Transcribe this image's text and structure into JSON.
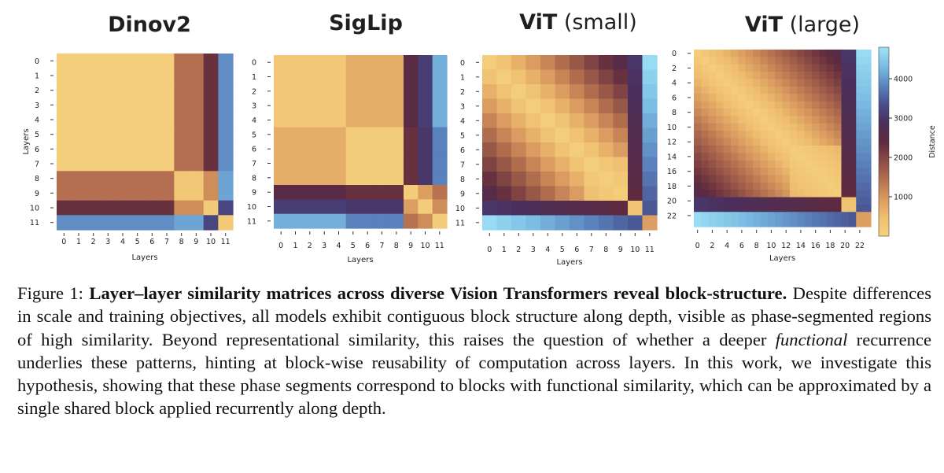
{
  "colors": {
    "scale": [
      "#f5d27e",
      "#efbf70",
      "#d99a5f",
      "#b4704f",
      "#8a4b45",
      "#5e2a3e",
      "#4a2f5c",
      "#48508f",
      "#5b86c0",
      "#7cbde3",
      "#9fe3f6"
    ]
  },
  "chart_data": [
    {
      "type": "heatmap",
      "title_bold": "Dinov2",
      "title_regular": "",
      "xlabel": "Layers",
      "ylabel": "Layers",
      "n": 12,
      "ticks": [
        "0",
        "1",
        "2",
        "3",
        "4",
        "5",
        "6",
        "7",
        "8",
        "9",
        "10",
        "11"
      ],
      "blocks": [
        [
          0,
          7
        ],
        [
          8,
          9
        ],
        [
          10,
          10
        ],
        [
          11,
          11
        ]
      ],
      "block_distances": [
        [
          100,
          1450,
          2300,
          3900
        ],
        [
          1450,
          250,
          1100,
          4100
        ],
        [
          2300,
          1100,
          200,
          3200
        ],
        [
          3900,
          4100,
          3200,
          200
        ]
      ]
    },
    {
      "type": "heatmap",
      "title_bold": "SigLip",
      "title_regular": "",
      "xlabel": "Layers",
      "ylabel": "Layers",
      "n": 12,
      "ticks": [
        "0",
        "1",
        "2",
        "3",
        "4",
        "5",
        "6",
        "7",
        "8",
        "9",
        "10",
        "11"
      ],
      "blocks": [
        [
          0,
          4
        ],
        [
          5,
          8
        ],
        [
          9,
          9
        ],
        [
          10,
          10
        ],
        [
          11,
          11
        ]
      ],
      "block_distances": [
        [
          250,
          700,
          2500,
          3100,
          4200
        ],
        [
          700,
          150,
          2300,
          3000,
          3800
        ],
        [
          2500,
          2300,
          150,
          900,
          1400
        ],
        [
          3100,
          3000,
          900,
          150,
          1100
        ],
        [
          4200,
          3800,
          1400,
          1100,
          150
        ]
      ]
    },
    {
      "type": "heatmap",
      "title_bold": "ViT",
      "title_regular": " (small)",
      "xlabel": "Layers",
      "ylabel": "Layers",
      "n": 12,
      "ticks": [
        "0",
        "1",
        "2",
        "3",
        "4",
        "5",
        "6",
        "7",
        "8",
        "9",
        "10",
        "11"
      ],
      "smooth": 1
    },
    {
      "type": "heatmap",
      "title_bold": "ViT",
      "title_regular": " (large)",
      "xlabel": "Layers",
      "ylabel": "Layers",
      "n": 24,
      "ticks": [
        "0",
        "2",
        "4",
        "6",
        "8",
        "10",
        "12",
        "14",
        "16",
        "18",
        "20",
        "22"
      ],
      "smooth": 2,
      "colorbar": {
        "label": "Distance",
        "min": 0,
        "max": 4800,
        "ticks": [
          "1000",
          "2000",
          "3000",
          "4000"
        ],
        "tick_values": [
          1000,
          2000,
          3000,
          4000
        ]
      }
    }
  ],
  "caption": {
    "prefix": "Figure 1: ",
    "title": "Layer–layer similarity matrices across diverse Vision Transformers reveal block-structure.",
    "text1": " Despite differences in scale and training objectives, all models exhibit contiguous block structure along depth, visible as phase-segmented regions of high similarity. Beyond representational similarity, this raises the question of whether a deeper ",
    "emph": "functional",
    "text2": " recurrence underlies these patterns, hinting at block-wise reusability of computation across layers.  In this work, we investigate this hypothesis, showing that these phase segments correspond to blocks with functional similarity, which can be approximated by a single shared block applied recurrently along depth."
  }
}
